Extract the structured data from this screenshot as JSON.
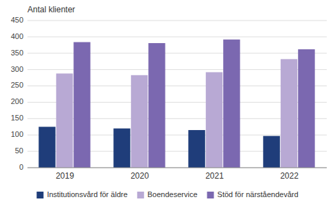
{
  "chart_data": {
    "type": "bar",
    "y_label": "Antal klienter",
    "categories": [
      "2019",
      "2020",
      "2021",
      "2022"
    ],
    "series": [
      {
        "name": "Institutionsvård för äldre",
        "color": "#1f3d7a",
        "values": [
          125,
          120,
          115,
          97
        ]
      },
      {
        "name": "Boendeservice",
        "color": "#b8a9d4",
        "values": [
          288,
          283,
          292,
          332
        ]
      },
      {
        "name": "Stöd för närståendevård",
        "color": "#7b68b0",
        "values": [
          384,
          381,
          392,
          362
        ]
      }
    ],
    "ylim": [
      0,
      450
    ],
    "yticks": [
      0,
      50,
      100,
      150,
      200,
      250,
      300,
      350,
      400,
      450
    ],
    "grid": true,
    "legend": "bottom"
  }
}
